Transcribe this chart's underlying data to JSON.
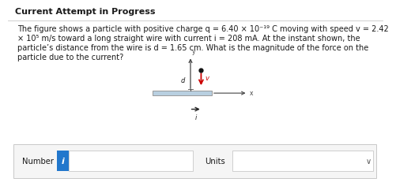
{
  "title": "Current Attempt in Progress",
  "line1": "The figure shows a particle with positive charge q = 6.40 × 10⁻¹⁹ C moving with speed v = 2.42",
  "line2": "× 10⁵ m/s toward a long straight wire with current i = 208 mA. At the instant shown, the",
  "line3": "particle’s distance from the wire is d = 1.65 cm. What is the magnitude of the force on the",
  "line4": "particle due to the current?",
  "number_label": "Number",
  "units_label": "Units",
  "bg_color": "#ffffff",
  "box_border_color": "#c8c8c8",
  "title_sep_color": "#d0d0d0",
  "wire_color": "#b8cfe0",
  "wire_border_color": "#999999",
  "arrow_color": "#222222",
  "velocity_color": "#cc0000",
  "axis_color": "#444444",
  "info_box_color": "#2277cc",
  "text_color": "#1a1a1a",
  "bottom_bg": "#f5f5f5"
}
